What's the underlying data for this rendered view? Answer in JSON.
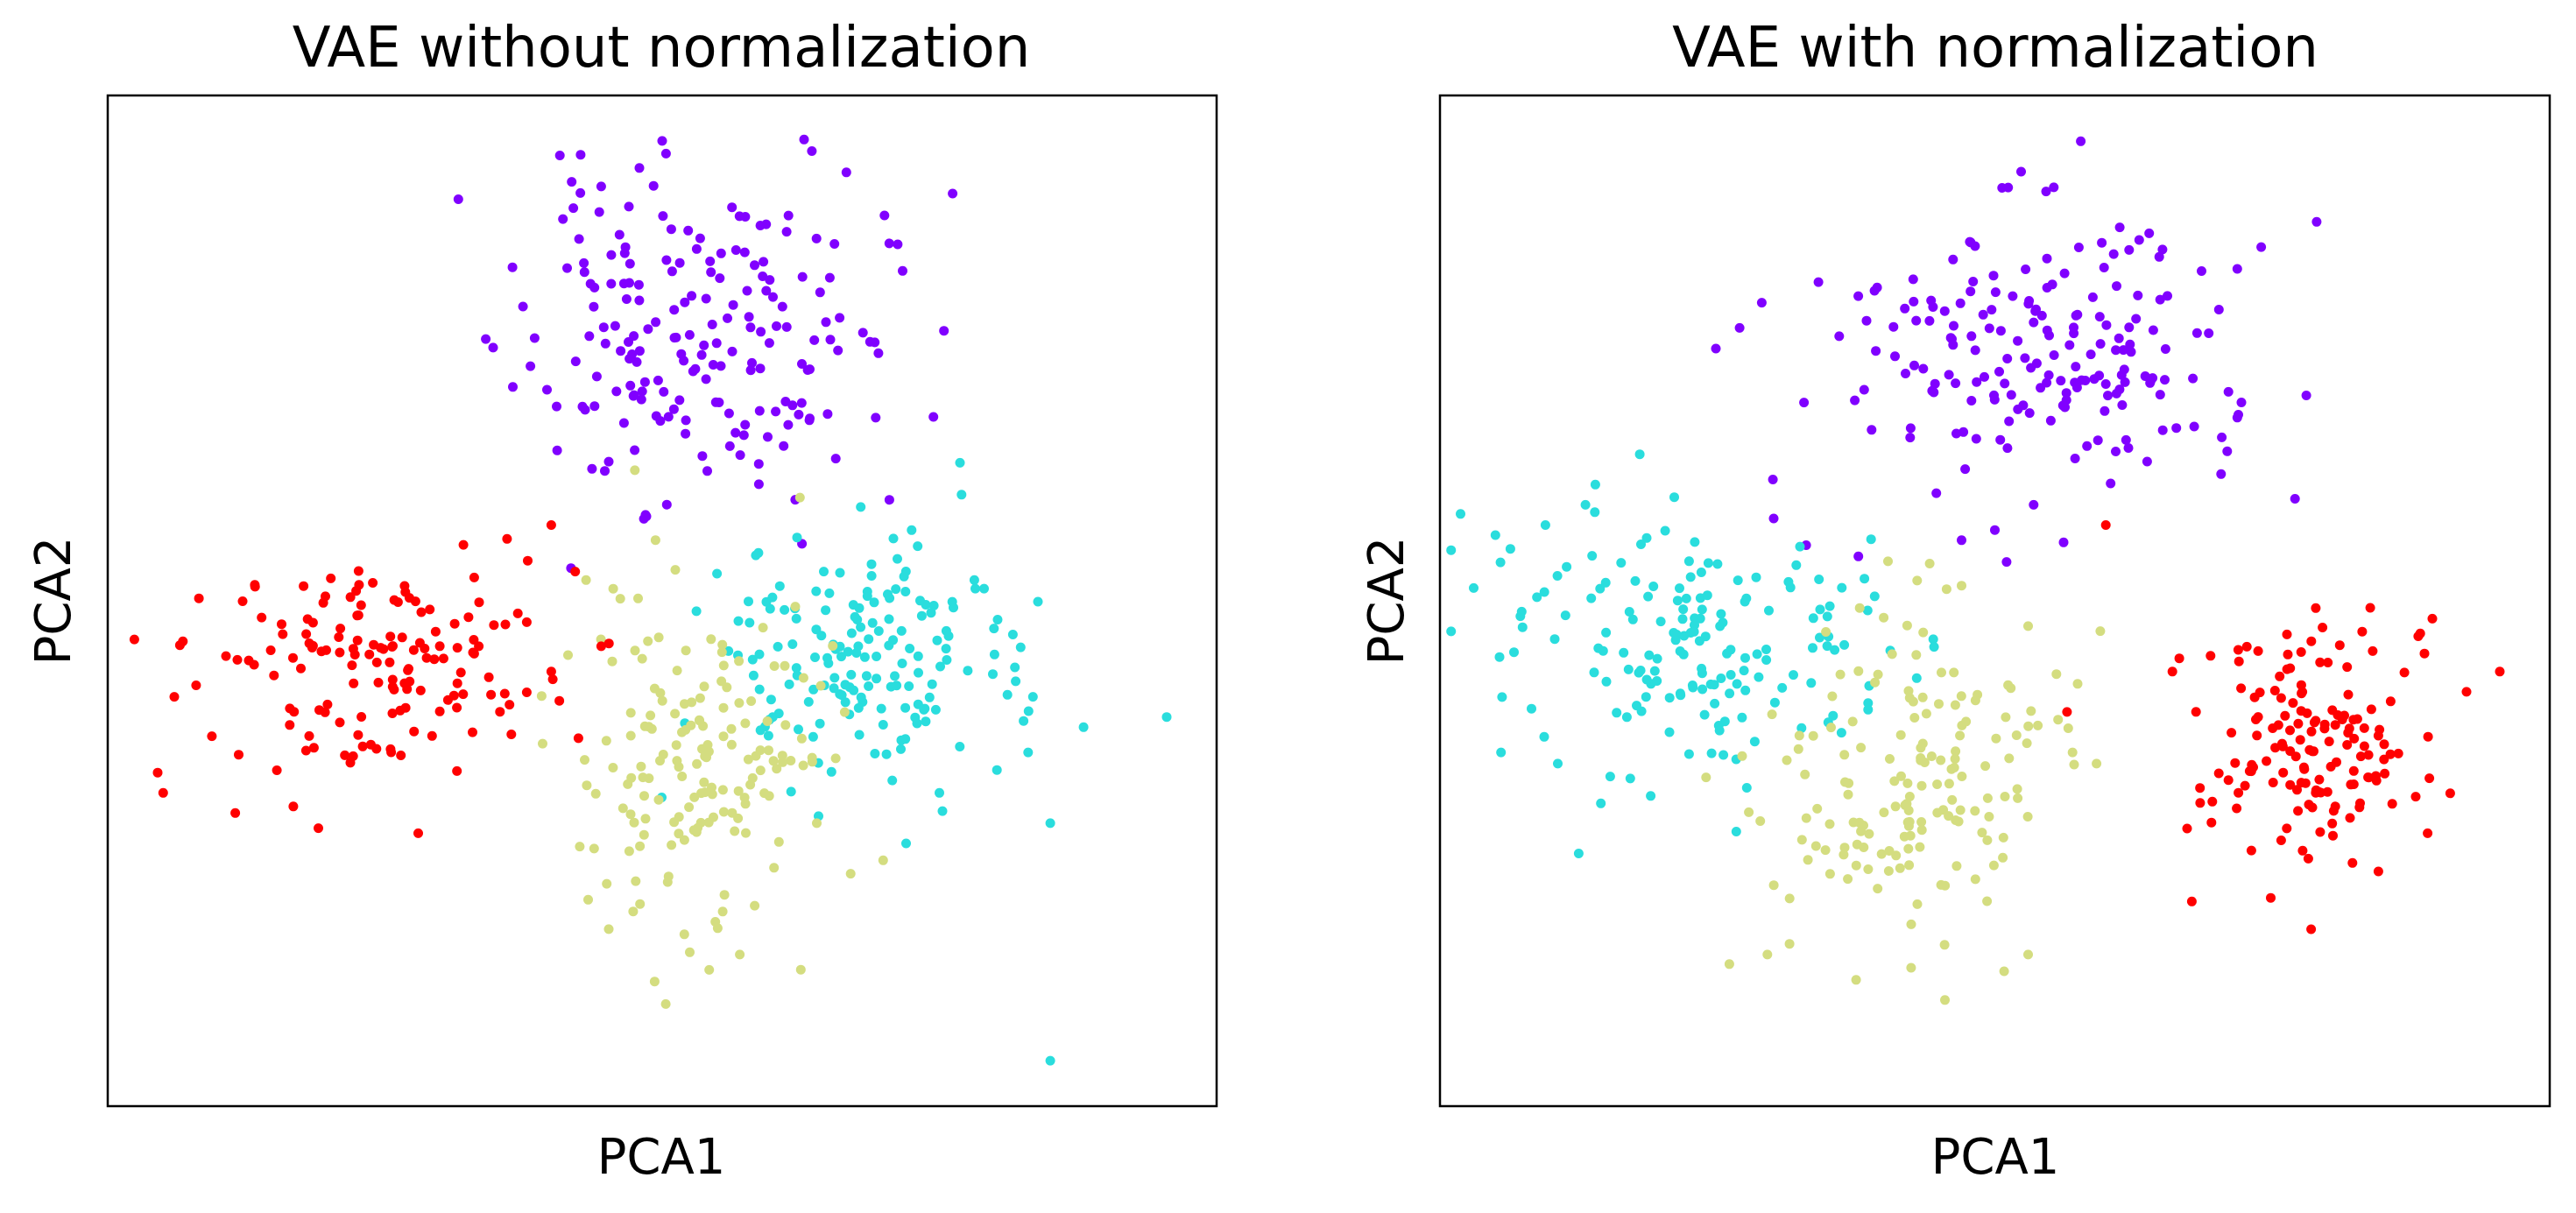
{
  "colors": {
    "purple": "#8000ff",
    "cyan": "#2adddd",
    "khaki": "#d4dd80",
    "red": "#ff0000"
  },
  "chart_data": [
    {
      "type": "scatter",
      "title": "VAE without normalization",
      "xlabel": "PCA1",
      "ylabel": "PCA2",
      "xlim": [
        0,
        100
      ],
      "ylim": [
        0,
        100
      ],
      "xticks_visible": false,
      "yticks_visible": false,
      "grid": false,
      "legend": "none",
      "series": [
        {
          "color": "#8000ff",
          "cluster": {
            "cx": 53,
            "cy": 76,
            "sx": 8,
            "sy": 8,
            "n": 190,
            "seed": 11
          },
          "points": [
            [
              50,
              95.5
            ],
            [
              63.5,
              94.5
            ],
            [
              44.5,
              91
            ],
            [
              47,
              89
            ],
            [
              57.5,
              88
            ],
            [
              66,
              78
            ],
            [
              69.5,
              74.5
            ],
            [
              36.5,
              83
            ],
            [
              38.5,
              76
            ],
            [
              62,
              60
            ],
            [
              48.5,
              58.5
            ]
          ]
        },
        {
          "color": "#2adddd",
          "cluster": {
            "cx": 68,
            "cy": 44,
            "sx": 7,
            "sy": 6,
            "n": 170,
            "seed": 23
          },
          "points": [
            [
              77,
              60.5
            ],
            [
              95.5,
              38.5
            ],
            [
              88,
              37.5
            ],
            [
              85,
              28
            ],
            [
              83,
              35
            ],
            [
              72,
              26
            ],
            [
              75,
              31
            ],
            [
              85,
              4.5
            ]
          ]
        },
        {
          "color": "#d4dd80",
          "cluster": {
            "cx": 54,
            "cy": 35,
            "sx": 5.5,
            "sy": 9,
            "n": 160,
            "seed": 37
          },
          "points": [
            [
              45,
              22
            ],
            [
              48,
              20
            ],
            [
              52,
              17
            ],
            [
              57,
              15
            ],
            [
              62.5,
              13.5
            ],
            [
              67,
              23
            ],
            [
              45.5,
              44
            ]
          ]
        },
        {
          "color": "#ff0000",
          "cluster": {
            "cx": 24,
            "cy": 44,
            "sx": 8,
            "sy": 5,
            "n": 150,
            "seed": 53
          },
          "points": [
            [
              4.5,
              33
            ],
            [
              5,
              31
            ],
            [
              6,
              40.5
            ],
            [
              11.5,
              29
            ],
            [
              19,
              27.5
            ],
            [
              28,
              27
            ],
            [
              40,
              57.5
            ],
            [
              44.5,
              45.5
            ],
            [
              40,
              43
            ]
          ]
        }
      ]
    },
    {
      "type": "scatter",
      "title": "VAE with normalization",
      "xlabel": "PCA1",
      "ylabel": "PCA2",
      "xlim": [
        0,
        100
      ],
      "ylim": [
        0,
        100
      ],
      "xticks_visible": false,
      "yticks_visible": false,
      "grid": false,
      "legend": "none",
      "series": [
        {
          "color": "#8000ff",
          "cluster": {
            "cx": 55,
            "cy": 75,
            "sx": 10,
            "sy": 7,
            "n": 190,
            "seed": 71
          },
          "points": [
            [
              79,
              87.5
            ],
            [
              74,
              85
            ],
            [
              29,
              79.5
            ],
            [
              27,
              77
            ],
            [
              30,
              62
            ],
            [
              33,
              55.5
            ],
            [
              53.5,
              59.5
            ],
            [
              47,
              56
            ],
            [
              50,
              57
            ]
          ]
        },
        {
          "color": "#2adddd",
          "cluster": {
            "cx": 22,
            "cy": 46,
            "sx": 9,
            "sy": 6,
            "n": 170,
            "seed": 89
          },
          "points": [
            [
              5,
              56.5
            ],
            [
              9.5,
              57.5
            ],
            [
              14,
              61.5
            ],
            [
              18,
              64.5
            ],
            [
              5.5,
              35
            ],
            [
              12.5,
              25
            ]
          ]
        },
        {
          "color": "#d4dd80",
          "cluster": {
            "cx": 42,
            "cy": 32,
            "sx": 7,
            "sy": 8,
            "n": 160,
            "seed": 97
          },
          "points": [
            [
              43,
              52
            ],
            [
              47,
              51.5
            ],
            [
              53,
              47.5
            ],
            [
              59.5,
              47
            ],
            [
              57,
              35
            ],
            [
              53,
              15
            ],
            [
              45.5,
              10.5
            ],
            [
              37.5,
              12.5
            ],
            [
              29.5,
              15
            ]
          ]
        },
        {
          "color": "#ff0000",
          "cluster": {
            "cx": 79,
            "cy": 36,
            "sx": 5,
            "sy": 6,
            "n": 150,
            "seed": 113
          },
          "points": [
            [
              72,
              44
            ],
            [
              66,
              43
            ],
            [
              68.5,
              30
            ],
            [
              95.5,
              43
            ],
            [
              92.5,
              41
            ],
            [
              89,
              27
            ],
            [
              78.5,
              17.5
            ],
            [
              60,
              57.5
            ],
            [
              56.5,
              39
            ]
          ]
        }
      ]
    }
  ]
}
